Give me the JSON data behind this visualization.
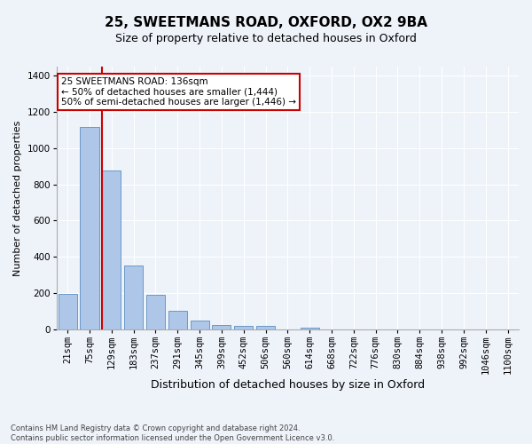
{
  "title": "25, SWEETMANS ROAD, OXFORD, OX2 9BA",
  "subtitle": "Size of property relative to detached houses in Oxford",
  "xlabel": "Distribution of detached houses by size in Oxford",
  "ylabel": "Number of detached properties",
  "categories": [
    "21sqm",
    "75sqm",
    "129sqm",
    "183sqm",
    "237sqm",
    "291sqm",
    "345sqm",
    "399sqm",
    "452sqm",
    "506sqm",
    "560sqm",
    "614sqm",
    "668sqm",
    "722sqm",
    "776sqm",
    "830sqm",
    "884sqm",
    "938sqm",
    "992sqm",
    "1046sqm",
    "1100sqm"
  ],
  "values": [
    195,
    1115,
    875,
    350,
    190,
    100,
    50,
    25,
    20,
    18,
    0,
    10,
    0,
    0,
    0,
    0,
    0,
    0,
    0,
    0,
    0
  ],
  "bar_color": "#aec6e8",
  "bar_edgecolor": "#5a8fc2",
  "vline_color": "#cc0000",
  "vline_x_index": 2,
  "annotation_text": "25 SWEETMANS ROAD: 136sqm\n← 50% of detached houses are smaller (1,444)\n50% of semi-detached houses are larger (1,446) →",
  "annotation_box_edgecolor": "#cc0000",
  "annotation_box_facecolor": "#ffffff",
  "footnote": "Contains HM Land Registry data © Crown copyright and database right 2024.\nContains public sector information licensed under the Open Government Licence v3.0.",
  "background_color": "#eef2f9",
  "grid_color": "#ffffff",
  "title_fontsize": 11,
  "subtitle_fontsize": 9,
  "xlabel_fontsize": 9,
  "ylabel_fontsize": 8,
  "tick_fontsize": 7.5,
  "annotation_fontsize": 7.5,
  "footnote_fontsize": 6,
  "ylim": [
    0,
    1450
  ],
  "yticks": [
    0,
    200,
    400,
    600,
    800,
    1000,
    1200,
    1400
  ]
}
